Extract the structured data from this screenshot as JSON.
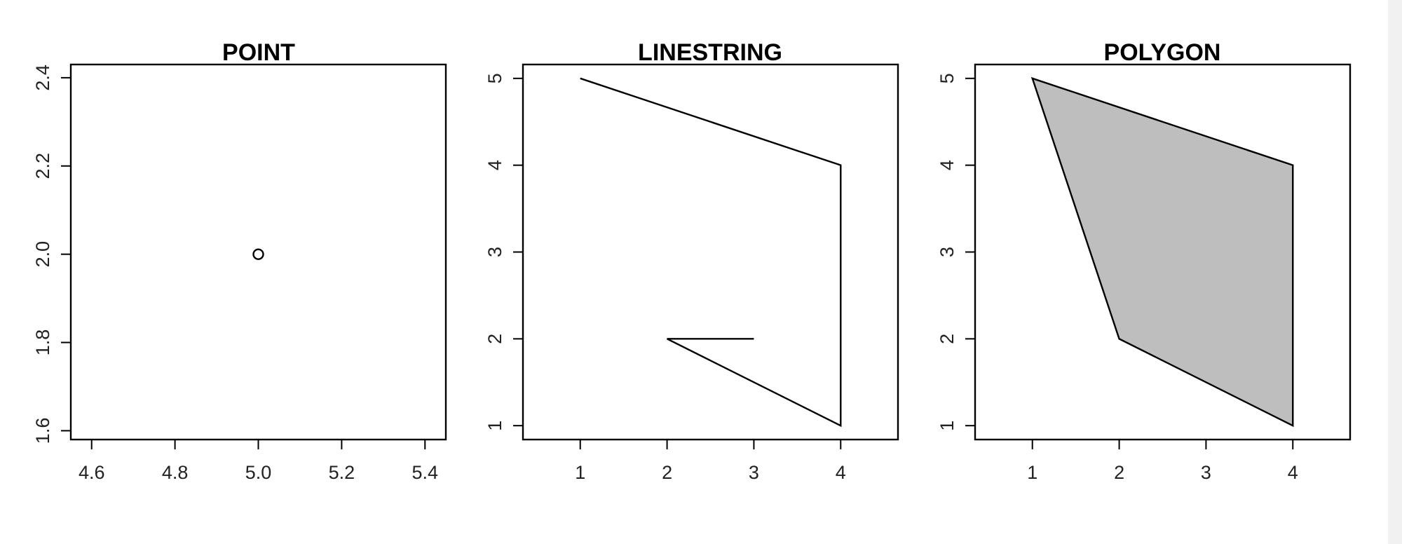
{
  "chart_data": [
    {
      "type": "scatter",
      "title": "POINT",
      "xlabel": "",
      "ylabel": "",
      "xlim": [
        4.55,
        5.45
      ],
      "ylim": [
        1.58,
        2.43
      ],
      "x_ticks": [
        "4.6",
        "4.8",
        "5.0",
        "5.2",
        "5.4"
      ],
      "y_ticks": [
        "1.6",
        "1.8",
        "2.0",
        "2.2",
        "2.4"
      ],
      "points": [
        {
          "x": 5.0,
          "y": 2.0
        }
      ],
      "marker": "open-circle",
      "fill": "none",
      "grid": false,
      "legend": "none"
    },
    {
      "type": "line",
      "title": "LINESTRING",
      "xlabel": "",
      "ylabel": "",
      "xlim": [
        0.34,
        4.66
      ],
      "ylim": [
        0.84,
        5.16
      ],
      "x_ticks": [
        "1",
        "2",
        "3",
        "4"
      ],
      "y_ticks": [
        "1",
        "2",
        "3",
        "4",
        "5"
      ],
      "points": [
        {
          "x": 1,
          "y": 5
        },
        {
          "x": 4,
          "y": 4
        },
        {
          "x": 4,
          "y": 1
        },
        {
          "x": 2,
          "y": 2
        },
        {
          "x": 3,
          "y": 2
        }
      ],
      "fill": "none",
      "grid": false,
      "legend": "none"
    },
    {
      "type": "area",
      "title": "POLYGON",
      "xlabel": "",
      "ylabel": "",
      "xlim": [
        0.34,
        4.66
      ],
      "ylim": [
        0.84,
        5.16
      ],
      "x_ticks": [
        "1",
        "2",
        "3",
        "4"
      ],
      "y_ticks": [
        "1",
        "2",
        "3",
        "4",
        "5"
      ],
      "points": [
        {
          "x": 1,
          "y": 5
        },
        {
          "x": 4,
          "y": 4
        },
        {
          "x": 4,
          "y": 1
        },
        {
          "x": 2,
          "y": 2
        },
        {
          "x": 1,
          "y": 5
        }
      ],
      "fill": "#bebebe",
      "grid": false,
      "legend": "none"
    }
  ],
  "colors": {
    "axis": "#000000",
    "line": "#000000",
    "polygon_fill": "#bebebe",
    "background": "#ffffff",
    "scrollbar_track": "#f1f1f1"
  }
}
